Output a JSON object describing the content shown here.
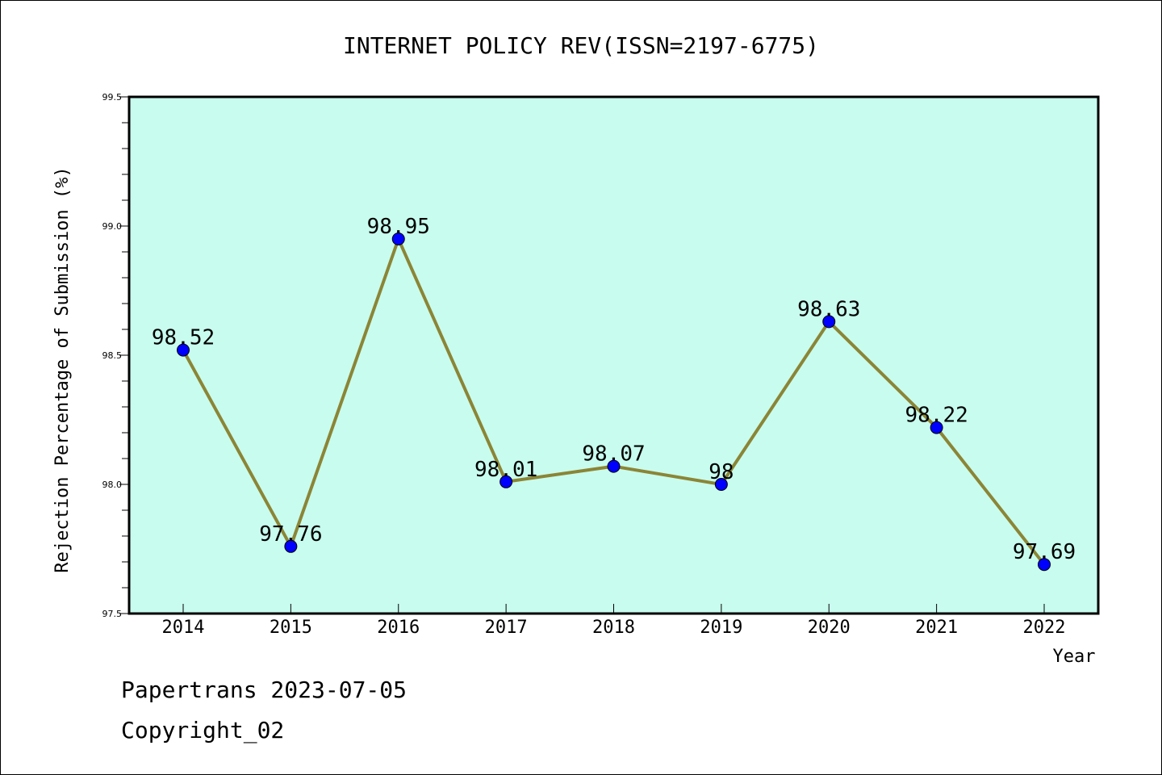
{
  "chart_data": {
    "type": "line",
    "title": "INTERNET POLICY REV(ISSN=2197-6775)",
    "xlabel": "Year",
    "ylabel": "Rejection Percentage of Submission (%)",
    "categories": [
      "2014",
      "2015",
      "2016",
      "2017",
      "2018",
      "2019",
      "2020",
      "2021",
      "2022"
    ],
    "values": [
      98.52,
      97.76,
      98.95,
      98.01,
      98.07,
      98,
      98.63,
      98.22,
      97.69
    ],
    "data_labels": [
      "98.52",
      "97.76",
      "98.95",
      "98.01",
      "98.07",
      "98",
      "98.63",
      "98.22",
      "97.69"
    ],
    "ylim": [
      97.5,
      99.5
    ],
    "yticks": [
      "97.5",
      "98.0",
      "98.5",
      "99.0",
      "99.5"
    ],
    "grid": false,
    "colors": {
      "plot_background": "#c8fcee",
      "line": "#8b8536",
      "marker": "#0000ff"
    }
  },
  "footer": {
    "line1": "Papertrans 2023-07-05",
    "line2": "Copyright_02"
  }
}
